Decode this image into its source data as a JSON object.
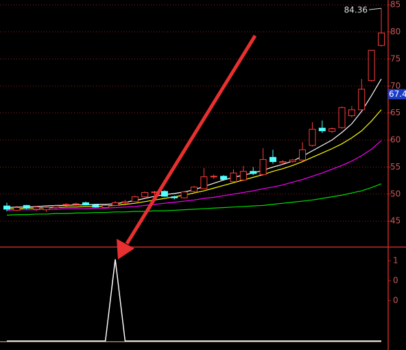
{
  "chart_data": [
    {
      "type": "candlestick",
      "ylim": [
        40.2,
        85.9
      ],
      "yticks": [
        45,
        50,
        55,
        60,
        65,
        70,
        75,
        80,
        85
      ],
      "grid": true,
      "up_color": "#ff3c3c",
      "down_color": "#54ffff",
      "open": [
        47.8,
        47.0,
        47.9,
        47.2,
        47.1,
        47.5,
        48.0,
        48.1,
        48.4,
        48.0,
        47.5,
        47.9,
        48.4,
        48.6,
        49.5,
        50.3,
        50.5,
        49.5,
        49.3,
        50.5,
        51.0,
        53.2,
        53.3,
        52.3,
        52.6,
        54.2,
        53.6,
        56.8,
        55.8,
        56.0,
        56.3,
        59.0,
        62.2,
        61.6,
        62.3,
        64.5,
        65.6,
        71.0,
        77.5
      ],
      "high": [
        48.4,
        47.8,
        48.0,
        47.8,
        47.8,
        48.0,
        48.3,
        48.4,
        48.6,
        48.2,
        48.0,
        48.7,
        48.9,
        49.7,
        50.5,
        50.6,
        50.7,
        49.7,
        50.6,
        51.5,
        54.8,
        53.6,
        53.5,
        54.6,
        55.2,
        55.0,
        58.5,
        58.2,
        56.3,
        56.5,
        59.6,
        63.3,
        63.6,
        62.3,
        66.2,
        66.3,
        71.3,
        76.7,
        84.36
      ],
      "low": [
        46.8,
        46.9,
        47.2,
        46.9,
        46.7,
        47.3,
        47.7,
        47.8,
        47.9,
        47.5,
        47.4,
        47.8,
        48.2,
        48.5,
        49.4,
        49.8,
        49.5,
        49.0,
        49.2,
        50.3,
        50.9,
        52.8,
        52.6,
        52.1,
        52.4,
        53.5,
        53.4,
        55.6,
        55.5,
        55.8,
        56.1,
        58.8,
        61.3,
        61.3,
        62.1,
        64.2,
        65.4,
        70.8,
        77.3
      ],
      "close": [
        47.2,
        47.5,
        47.4,
        47.6,
        47.5,
        47.8,
        48.1,
        48.2,
        48.0,
        47.6,
        47.9,
        48.4,
        48.6,
        49.5,
        50.3,
        50.4,
        49.6,
        49.3,
        50.4,
        51.3,
        53.2,
        53.3,
        52.7,
        53.9,
        54.2,
        53.8,
        56.4,
        56.0,
        56.0,
        56.3,
        58.2,
        62.0,
        61.7,
        62.1,
        66.0,
        65.6,
        69.4,
        76.6,
        79.8
      ],
      "series": [
        {
          "color": "#ffffff",
          "values": [
            47.5,
            47.6,
            47.6,
            47.7,
            47.8,
            47.9,
            47.9,
            48.0,
            48.0,
            48.1,
            48.1,
            48.2,
            48.5,
            48.8,
            49.2,
            49.6,
            49.9,
            50.1,
            50.4,
            50.8,
            51.4,
            52.0,
            52.6,
            53.1,
            53.5,
            53.9,
            54.4,
            55.0,
            55.5,
            56.1,
            57.0,
            58.0,
            59.0,
            60.0,
            61.4,
            63.0,
            65.3,
            68.2,
            71.3
          ]
        },
        {
          "color": "#ffff00",
          "values": [
            47.3,
            47.3,
            47.4,
            47.4,
            47.5,
            47.5,
            47.6,
            47.6,
            47.7,
            47.7,
            47.8,
            47.9,
            48.1,
            48.3,
            48.6,
            48.9,
            49.2,
            49.5,
            49.8,
            50.2,
            50.6,
            51.1,
            51.6,
            52.1,
            52.6,
            53.1,
            53.6,
            54.2,
            54.7,
            55.3,
            56.0,
            56.8,
            57.6,
            58.4,
            59.3,
            60.4,
            61.7,
            63.5,
            65.6
          ]
        },
        {
          "color": "#ff00ff",
          "values": [
            47.0,
            47.1,
            47.1,
            47.1,
            47.2,
            47.2,
            47.3,
            47.3,
            47.3,
            47.4,
            47.4,
            47.5,
            47.6,
            47.7,
            47.9,
            48.1,
            48.3,
            48.5,
            48.7,
            48.9,
            49.2,
            49.4,
            49.7,
            50.0,
            50.3,
            50.6,
            51.0,
            51.3,
            51.7,
            52.2,
            52.7,
            53.3,
            53.9,
            54.6,
            55.3,
            56.1,
            57.1,
            58.3,
            59.9
          ]
        },
        {
          "color": "#00e000",
          "values": [
            46.1,
            46.2,
            46.2,
            46.3,
            46.3,
            46.4,
            46.4,
            46.5,
            46.5,
            46.6,
            46.6,
            46.7,
            46.7,
            46.8,
            46.8,
            46.9,
            46.9,
            47.0,
            47.1,
            47.2,
            47.3,
            47.4,
            47.5,
            47.6,
            47.7,
            47.8,
            47.9,
            48.1,
            48.3,
            48.5,
            48.7,
            48.9,
            49.2,
            49.5,
            49.8,
            50.2,
            50.6,
            51.2,
            51.9
          ]
        }
      ],
      "annotations": [
        {
          "value": 84.36,
          "label": "84.36"
        }
      ],
      "price_tag": {
        "value": 67.4,
        "label": "67.4"
      }
    },
    {
      "type": "line",
      "ylim": [
        -0.11,
        1.15
      ],
      "color": "#ffffff",
      "values": [
        0,
        0,
        0,
        0,
        0,
        0,
        0,
        0,
        0,
        0,
        0,
        1,
        0,
        0,
        0,
        0,
        0,
        0,
        0,
        0,
        0,
        0,
        0,
        0,
        0,
        0,
        0,
        0,
        0,
        0,
        0,
        0,
        0,
        0,
        0,
        0,
        0,
        0,
        0
      ],
      "axis_labels": [
        "1",
        "0",
        "0"
      ]
    }
  ]
}
